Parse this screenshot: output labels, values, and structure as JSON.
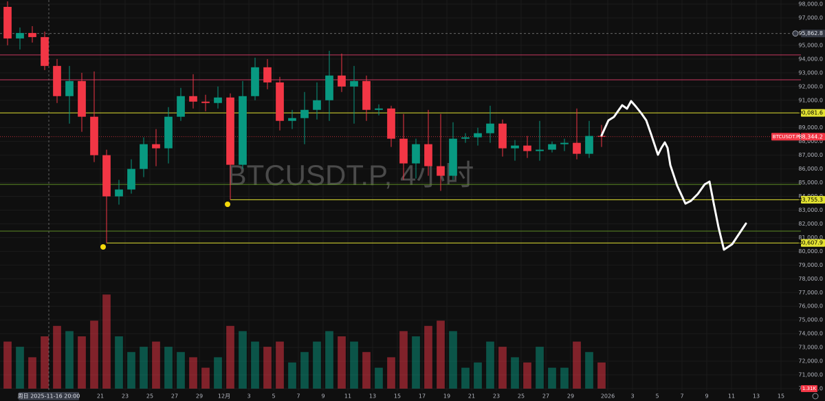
{
  "chart_data": {
    "type": "candlestick",
    "title": "BTCUSDT.P, 4小时",
    "x": [
      "2025-11-13",
      "2025-11-14",
      "2025-11-15",
      "2025-11-16",
      "2025-11-17",
      "2025-11-18",
      "2025-11-19",
      "2025-11-20",
      "2025-11-21",
      "2025-11-22",
      "2025-11-23",
      "2025-11-24",
      "2025-11-25",
      "2025-11-26",
      "2025-11-27",
      "2025-11-28",
      "2025-11-29",
      "2025-11-30",
      "2025-12-01",
      "2025-12-02",
      "2025-12-03",
      "2025-12-04",
      "2025-12-05",
      "2025-12-06",
      "2025-12-07",
      "2025-12-08",
      "2025-12-09",
      "2025-12-10",
      "2025-12-11",
      "2025-12-12",
      "2025-12-13",
      "2025-12-14",
      "2025-12-15",
      "2025-12-16",
      "2025-12-17",
      "2025-12-18",
      "2025-12-19",
      "2025-12-20",
      "2025-12-21",
      "2025-12-22",
      "2025-12-23",
      "2025-12-24",
      "2025-12-25",
      "2025-12-26",
      "2025-12-27",
      "2025-12-28",
      "2025-12-29",
      "2025-12-30",
      "2025-12-31"
    ],
    "open": [
      97800,
      95500,
      95900,
      95600,
      93500,
      91300,
      92400,
      89800,
      87000,
      84000,
      84500,
      86000,
      87800,
      87500,
      89800,
      91300,
      90900,
      90800,
      91200,
      86300,
      91300,
      93400,
      92300,
      89500,
      89700,
      90300,
      91000,
      92800,
      92000,
      92400,
      90300,
      90400,
      88200,
      86400,
      87800,
      86200,
      85500,
      88200,
      88300,
      88600,
      89300,
      87500,
      87700,
      87300,
      87400,
      87800,
      87900,
      87100,
      88400
    ],
    "high": [
      98200,
      96300,
      96400,
      96000,
      94000,
      93500,
      93000,
      93100,
      87400,
      85200,
      86700,
      88300,
      88900,
      90500,
      91900,
      92900,
      91400,
      92000,
      91500,
      92400,
      94100,
      94000,
      92700,
      90300,
      91600,
      92300,
      94600,
      94400,
      93500,
      92800,
      90700,
      90600,
      90000,
      88200,
      90300,
      90000,
      89400,
      88600,
      89000,
      90600,
      89600,
      88100,
      88400,
      89500,
      88000,
      88200,
      90400,
      89500,
      89200
    ],
    "low": [
      95000,
      94700,
      95200,
      93200,
      90800,
      89300,
      88700,
      86500,
      80607.9,
      83400,
      84200,
      85400,
      86200,
      86400,
      89500,
      90400,
      90200,
      90400,
      83755.3,
      86000,
      91000,
      91800,
      88800,
      88900,
      87800,
      89600,
      89500,
      91600,
      89300,
      89500,
      89900,
      87600,
      85200,
      85300,
      85500,
      84400,
      85200,
      87900,
      87700,
      87900,
      86900,
      86600,
      86800,
      86600,
      87200,
      87300,
      86700,
      86800,
      87600
    ],
    "close": [
      95500,
      95900,
      95600,
      93500,
      91300,
      92400,
      89800,
      87000,
      84000,
      84500,
      86000,
      87800,
      87500,
      89800,
      91300,
      90900,
      90800,
      91200,
      86300,
      91300,
      93400,
      92300,
      89500,
      89700,
      90300,
      91000,
      92800,
      92000,
      92400,
      90300,
      90400,
      88200,
      86400,
      87800,
      86200,
      85500,
      88200,
      88300,
      88600,
      89300,
      87500,
      87700,
      87300,
      87400,
      87800,
      87900,
      87100,
      88400,
      88344.2
    ],
    "volume": [
      9,
      8,
      6,
      10,
      12,
      11,
      10,
      13,
      18,
      10,
      7,
      8,
      9,
      8,
      7,
      6,
      4,
      6,
      12,
      11,
      9,
      8,
      9,
      5,
      7,
      9,
      11,
      10,
      9,
      7,
      4,
      6,
      11,
      10,
      12,
      13,
      11,
      4,
      5,
      9,
      8,
      6,
      5,
      8,
      4,
      4,
      9,
      7,
      5
    ],
    "volume_ylim": [
      0,
      60
    ],
    "volume_label": "1.31K",
    "up_color": "#089981",
    "down_color": "#f23645",
    "ylim": [
      70000,
      98000
    ],
    "yticks": [
      {
        "value": 98000,
        "label": "98,000.0"
      },
      {
        "value": 97000,
        "label": "97,000.0"
      },
      {
        "value": 95000,
        "label": "95,000.0"
      },
      {
        "value": 94000,
        "label": "94,000.0"
      },
      {
        "value": 93000,
        "label": "93,000.0"
      },
      {
        "value": 92000,
        "label": "92,000.0"
      },
      {
        "value": 91000,
        "label": "91,000.0"
      },
      {
        "value": 89000,
        "label": "89,000.0"
      },
      {
        "value": 88000,
        "label": "88,000.0"
      },
      {
        "value": 87000,
        "label": "87,000.0"
      },
      {
        "value": 86000,
        "label": "86,000.0"
      },
      {
        "value": 85000,
        "label": "85,000.0"
      },
      {
        "value": 84000,
        "label": "84,000.0"
      },
      {
        "value": 83000,
        "label": "83,000.0"
      },
      {
        "value": 82000,
        "label": "82,000.0"
      },
      {
        "value": 81000,
        "label": "81,000.0"
      },
      {
        "value": 80000,
        "label": "80,000.0"
      },
      {
        "value": 79000,
        "label": "79,000.0"
      },
      {
        "value": 78000,
        "label": "78,000.0"
      },
      {
        "value": 77000,
        "label": "77,000.0"
      },
      {
        "value": 76000,
        "label": "76,000.0"
      },
      {
        "value": 75000,
        "label": "75,000.0"
      },
      {
        "value": 74000,
        "label": "74,000.0"
      },
      {
        "value": 73000,
        "label": "73,000.0"
      },
      {
        "value": 72000,
        "label": "72,000.0"
      },
      {
        "value": 71000,
        "label": "71,000.0"
      },
      {
        "value": 70000,
        "label": "70,000.0"
      }
    ],
    "xlim": [
      "2025-11-12 21:20",
      "2026-01-16 14:40"
    ],
    "xticks": [
      {
        "value": "2025-11-21",
        "label": "21"
      },
      {
        "value": "2025-11-23",
        "label": "23"
      },
      {
        "value": "2025-11-25",
        "label": "25"
      },
      {
        "value": "2025-11-27",
        "label": "27"
      },
      {
        "value": "2025-11-29",
        "label": "29"
      },
      {
        "value": "2025-12-01",
        "label": "12月"
      },
      {
        "value": "2025-12-03",
        "label": "3"
      },
      {
        "value": "2025-12-05",
        "label": "5"
      },
      {
        "value": "2025-12-07",
        "label": "7"
      },
      {
        "value": "2025-12-09",
        "label": "9"
      },
      {
        "value": "2025-12-11",
        "label": "11"
      },
      {
        "value": "2025-12-13",
        "label": "13"
      },
      {
        "value": "2025-12-15",
        "label": "15"
      },
      {
        "value": "2025-12-17",
        "label": "17"
      },
      {
        "value": "2025-12-19",
        "label": "19"
      },
      {
        "value": "2025-12-21",
        "label": "21"
      },
      {
        "value": "2025-12-23",
        "label": "23"
      },
      {
        "value": "2025-12-25",
        "label": "25"
      },
      {
        "value": "2025-12-27",
        "label": "27"
      },
      {
        "value": "2025-12-29",
        "label": "29"
      },
      {
        "value": "2026-01-01",
        "label": "2026"
      },
      {
        "value": "2026-01-03",
        "label": "3"
      },
      {
        "value": "2026-01-05",
        "label": "5"
      },
      {
        "value": "2026-01-07",
        "label": "7"
      },
      {
        "value": "2026-01-09",
        "label": "9"
      },
      {
        "value": "2026-01-11",
        "label": "11"
      },
      {
        "value": "2026-01-13",
        "label": "13"
      },
      {
        "value": "2026-01-15",
        "label": "15"
      }
    ],
    "grid": true,
    "levels": [
      {
        "value": 94300,
        "color": "#c8375f"
      },
      {
        "value": 92490,
        "color": "#c8375f"
      },
      {
        "value": 90081.6,
        "label": "90,081.6",
        "color": "#e3e332"
      },
      {
        "value": 84870,
        "color": "#5d8c24"
      },
      {
        "value": 83755.3,
        "label": "83,755.3",
        "color": "#e3e332",
        "from": "2025-12-01 12:00"
      },
      {
        "value": 81470,
        "color": "#5d8c24"
      },
      {
        "value": 80607.9,
        "label": "80,607.9",
        "color": "#e3e332",
        "from": "2025-11-21 12:00"
      }
    ],
    "last_price": {
      "name": "BTCUSDT.P",
      "value": 88344.2,
      "label": "88,344.2",
      "color": "#f23645"
    },
    "crosshair": {
      "x": {
        "value": "2025-11-16 20:00",
        "label": "周日 2025-11-16 20:00"
      },
      "y": {
        "value": 95862.8,
        "label": "95,862.8"
      }
    }
  }
}
